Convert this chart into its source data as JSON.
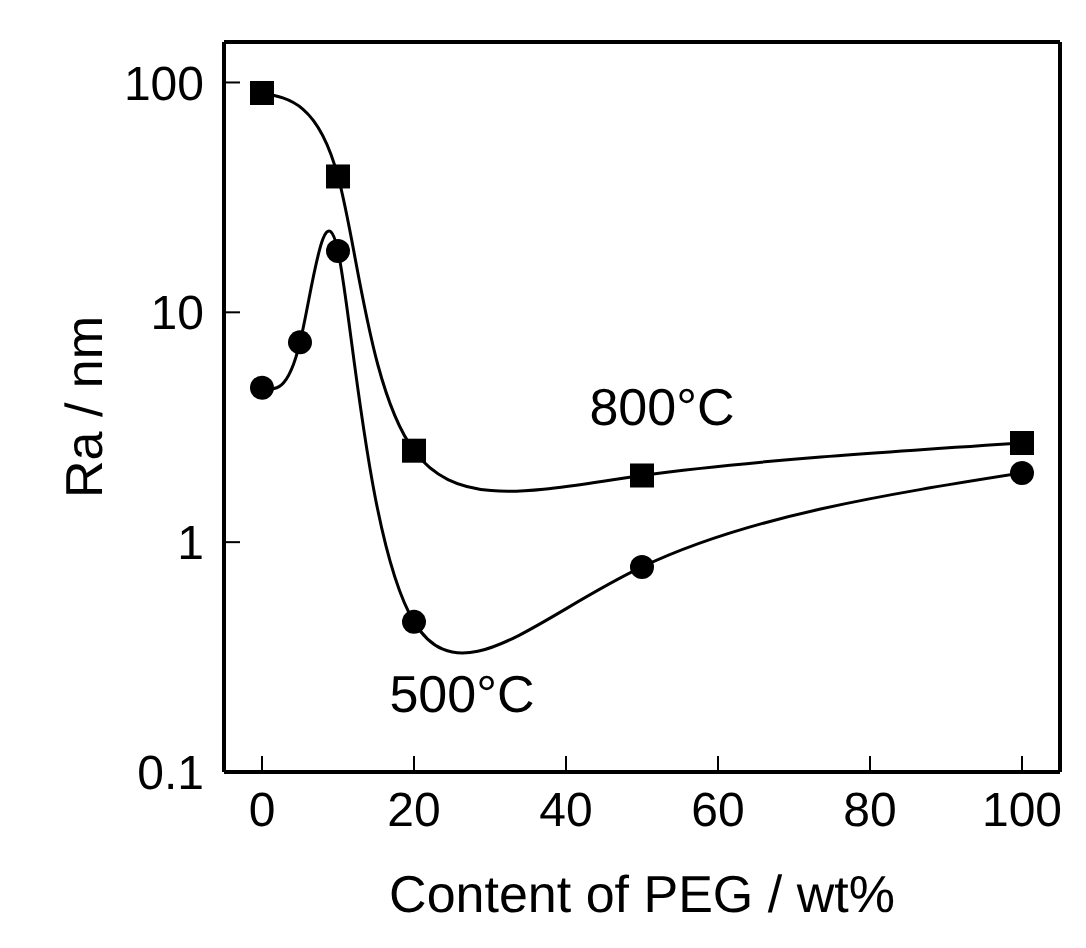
{
  "chart_data": {
    "type": "line",
    "xlabel": "Content of PEG / wt%",
    "ylabel": "Ra / nm",
    "log": "y",
    "xlim": [
      -5,
      105
    ],
    "xticks": [
      0,
      20,
      40,
      60,
      80,
      100
    ],
    "ylim": [
      0.1,
      150
    ],
    "yticks": [
      0.1,
      1,
      10,
      100
    ],
    "grid": false,
    "legend": false,
    "series": [
      {
        "name": "800°C",
        "color": "#000000",
        "marker": "square",
        "x": [
          0,
          10,
          20,
          50,
          100
        ],
        "values": [
          90,
          39,
          2.5,
          1.95,
          2.7
        ]
      },
      {
        "name": "500°C",
        "color": "#000000",
        "marker": "circle",
        "x": [
          0,
          5,
          10,
          20,
          50,
          100
        ],
        "values": [
          4.7,
          7.4,
          18.5,
          0.45,
          0.78,
          2.0
        ]
      }
    ]
  }
}
